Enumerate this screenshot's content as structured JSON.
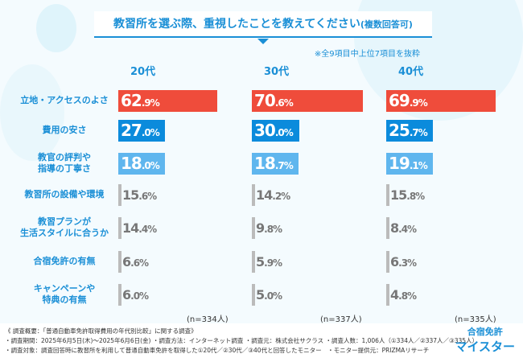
{
  "title": "教習所を選ぶ際、重視したことを教えてください",
  "title_suffix": "(複数回答可)",
  "note": "※全9項目中上位7項目を抜粋",
  "colors": {
    "accent": "#1a8fd6",
    "top": "#ef4c3b",
    "second": "#0b8bdc",
    "third": "#5fb6ee",
    "rest": "#bbbbbb"
  },
  "chart_data": {
    "type": "bar",
    "orientation": "horizontal",
    "categories": [
      "立地・アクセスのよさ",
      "費用の安さ",
      "教官の評判や指導の丁寧さ",
      "教習所の設備や環境",
      "教習プランが生活スタイルに合うか",
      "合宿免許の有無",
      "キャンペーンや特典の有無"
    ],
    "category_lines": [
      [
        "立地・アクセスのよさ"
      ],
      [
        "費用の安さ"
      ],
      [
        "教官の評判や",
        "指導の丁寧さ"
      ],
      [
        "教習所の設備や環境"
      ],
      [
        "教習プランが",
        "生活スタイルに合うか"
      ],
      [
        "合宿免許の有無"
      ],
      [
        "キャンペーンや",
        "特典の有無"
      ]
    ],
    "series": [
      {
        "name": "20代",
        "values": [
          62.9,
          27.0,
          18.0,
          15.6,
          14.4,
          6.6,
          6.0
        ],
        "n": "(n=334人)"
      },
      {
        "name": "30代",
        "values": [
          70.6,
          30.0,
          18.7,
          14.2,
          9.8,
          5.9,
          5.0
        ],
        "n": "(n=337人)"
      },
      {
        "name": "40代",
        "values": [
          69.9,
          25.7,
          19.1,
          15.8,
          8.4,
          6.3,
          4.8
        ],
        "n": "(n=335人)"
      }
    ],
    "unit": "%"
  },
  "footer": [
    "《 調査概要：「普通自動車免許取得費用の年代別比較」に関する調査》",
    "・調査期間：2025年6月5日(木)〜2025年6月6日(金) ・調査方法：インターネット調査 ・調査元：株式会社サクラス ・調査人数：1,006人（①334人／②337人／③335人）",
    "・調査対象：調査回答時に教習所を利用して普通自動車免許を取得した①20代／②30代／③40代と回答したモニター　・モニター提供元：PRIZMAリサーチ"
  ],
  "logo": {
    "top": "合宿免許",
    "bottom": "マイスター"
  }
}
